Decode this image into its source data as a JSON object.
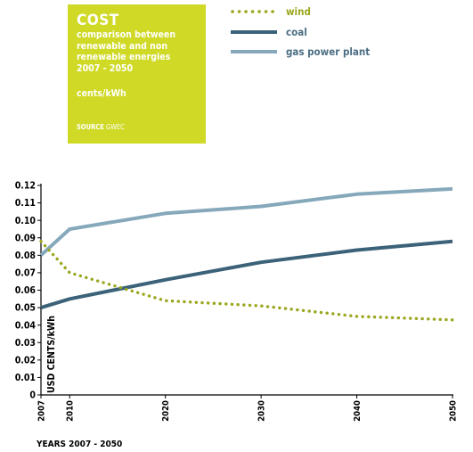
{
  "infobox": {
    "title": "COST",
    "subtitle_lines": [
      "comparison between",
      "renewable and non",
      "renewable energies",
      "2007 - 2050"
    ],
    "unit": "cents/kWh",
    "source_label": "SOURCE",
    "source_value": "GWEC",
    "background": "#cfd926"
  },
  "chart_data": {
    "type": "line",
    "x": [
      "2007",
      "2010",
      "2020",
      "2030",
      "2040",
      "2050"
    ],
    "series": [
      {
        "name": "wind",
        "values": [
          0.088,
          0.07,
          0.054,
          0.051,
          0.045,
          0.043
        ],
        "color": "#9aa61c",
        "style": "dotted"
      },
      {
        "name": "coal",
        "values": [
          0.05,
          0.055,
          0.066,
          0.076,
          0.083,
          0.088
        ],
        "color": "#3b6278",
        "style": "solid"
      },
      {
        "name": "gas power plant",
        "values": [
          0.08,
          0.095,
          0.104,
          0.108,
          0.115,
          0.118
        ],
        "color": "#86a8bb",
        "style": "solid"
      }
    ],
    "ylabel": "USD CENTS/kWh",
    "xlabel": "YEARS 2007 - 2050",
    "ylim": [
      0,
      0.12
    ],
    "yticks": [
      "0",
      "0.01",
      "0.02",
      "0.03",
      "0.04",
      "0.05",
      "0.06",
      "0.07",
      "0.08",
      "0.09",
      "0.10",
      "0.11",
      "0.12"
    ],
    "grid": false,
    "legend": "top-right"
  }
}
